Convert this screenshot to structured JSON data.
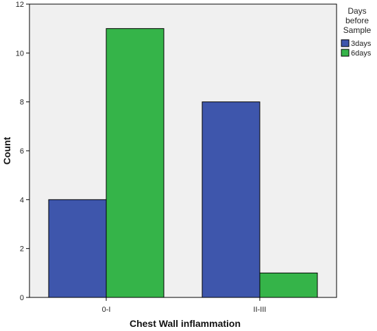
{
  "chart_data": {
    "type": "bar",
    "categories": [
      "0-I",
      "II-III"
    ],
    "series": [
      {
        "name": "3days",
        "color": "#3e56ac",
        "values": [
          4,
          8
        ]
      },
      {
        "name": "6days",
        "color": "#35b449",
        "values": [
          11,
          1
        ]
      }
    ],
    "xlabel": "Chest Wall inflammation",
    "ylabel": "Count",
    "ylim": [
      0,
      12
    ],
    "yticks": [
      0,
      2,
      4,
      6,
      8,
      10,
      12
    ],
    "grid": false,
    "legend": {
      "title_lines": [
        "Days",
        "before",
        "Sample"
      ],
      "placement": "right"
    },
    "colors": {
      "plot_background": "#f0f0f0",
      "frame": "#000000"
    }
  }
}
